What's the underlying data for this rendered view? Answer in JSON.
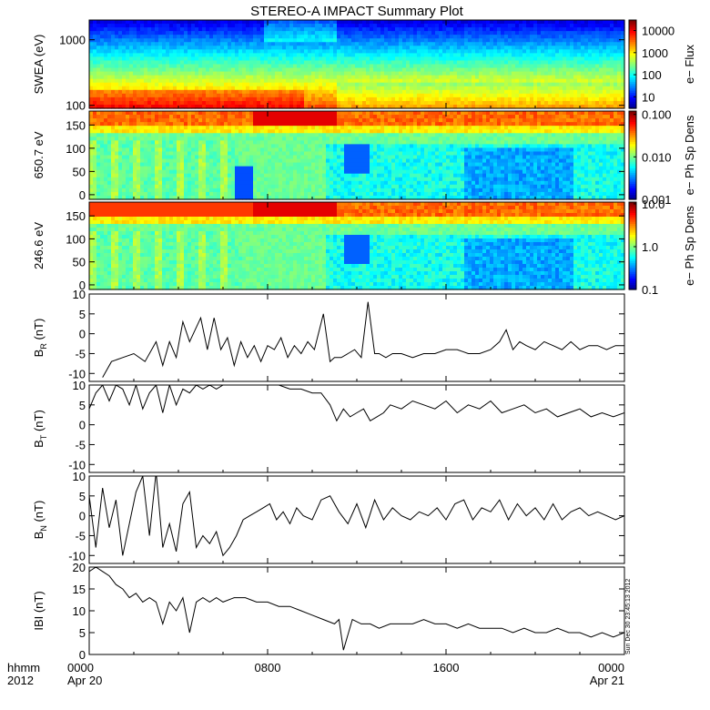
{
  "chart_data": {
    "type": "line",
    "title": "STEREO-A IMPACT Summary Plot",
    "stamp": "Sun Dec 30 23:45:13 2012",
    "time_axis": {
      "units_label": "hhmm",
      "year_label": "2012",
      "range_hours": [
        0,
        24
      ],
      "ticks": [
        {
          "hour": 0,
          "label": "0000",
          "date": "Apr 20"
        },
        {
          "hour": 8,
          "label": "0800",
          "date": ""
        },
        {
          "hour": 16,
          "label": "1600",
          "date": ""
        },
        {
          "hour": 24,
          "label": "0000",
          "date": "Apr 21"
        }
      ]
    },
    "spectrograms": [
      {
        "id": "swea",
        "ylabel": "SWEA (eV)",
        "yscale": "log",
        "ylim": [
          90,
          2000
        ],
        "yticks": [
          {
            "v": 100,
            "label": "100"
          },
          {
            "v": 1000,
            "label": "1000"
          }
        ],
        "colorbar_label": "e− Flux",
        "colorbar_scale": "log",
        "colorbar_ticks": [
          {
            "v": 10,
            "label": "10"
          },
          {
            "v": 100,
            "label": "100"
          },
          {
            "v": 1000,
            "label": "1000"
          },
          {
            "v": 10000,
            "label": "10000"
          }
        ],
        "colorbar_range": [
          3,
          30000
        ]
      },
      {
        "id": "pad650",
        "ylabel": "650.7 eV",
        "yscale": "linear",
        "ylim": [
          -10,
          180
        ],
        "yticks": [
          {
            "v": 0,
            "label": "0"
          },
          {
            "v": 50,
            "label": "50"
          },
          {
            "v": 100,
            "label": "100"
          },
          {
            "v": 150,
            "label": "150"
          }
        ],
        "colorbar_label": "e− Ph Sp Dens",
        "colorbar_scale": "log",
        "colorbar_ticks": [
          {
            "v": 0.001,
            "label": "0.001"
          },
          {
            "v": 0.01,
            "label": "0.010"
          },
          {
            "v": 0.1,
            "label": "0.100"
          }
        ],
        "colorbar_range": [
          0.001,
          0.12
        ]
      },
      {
        "id": "pad246",
        "ylabel": "246.6 eV",
        "yscale": "linear",
        "ylim": [
          -10,
          180
        ],
        "yticks": [
          {
            "v": 0,
            "label": "0"
          },
          {
            "v": 50,
            "label": "50"
          },
          {
            "v": 100,
            "label": "100"
          },
          {
            "v": 150,
            "label": "150"
          }
        ],
        "colorbar_label": "e− Ph Sp Dens",
        "colorbar_scale": "log",
        "colorbar_ticks": [
          {
            "v": 0.1,
            "label": "0.1"
          },
          {
            "v": 1,
            "label": "1.0"
          },
          {
            "v": 10,
            "label": "10.0"
          }
        ],
        "colorbar_range": [
          0.1,
          11
        ]
      }
    ],
    "series": [
      {
        "id": "BR",
        "ylabel_main": "B",
        "ylabel_sub": "R",
        "ylabel_unit": " (nT)",
        "ylim": [
          -12,
          10
        ],
        "yticks": [
          {
            "v": -10,
            "label": "-10"
          },
          {
            "v": -5,
            "label": "-5"
          },
          {
            "v": 0,
            "label": "0"
          },
          {
            "v": 5,
            "label": "5"
          },
          {
            "v": 10,
            "label": "10"
          }
        ],
        "x": [
          0.6,
          1.0,
          1.5,
          2.0,
          2.5,
          3.0,
          3.3,
          3.6,
          3.9,
          4.2,
          4.5,
          5.0,
          5.3,
          5.6,
          5.9,
          6.2,
          6.5,
          6.8,
          7.1,
          7.4,
          7.7,
          8.0,
          8.3,
          8.6,
          8.9,
          9.2,
          9.5,
          9.8,
          10.1,
          10.5,
          10.8,
          11.0,
          11.3,
          11.6,
          11.9,
          12.2,
          12.5,
          12.8,
          13.0,
          13.3,
          13.6,
          14.0,
          14.5,
          15.0,
          15.5,
          16.0,
          16.5,
          17.0,
          17.5,
          18.0,
          18.4,
          18.7,
          19.0,
          19.3,
          19.6,
          20.0,
          20.4,
          20.8,
          21.2,
          21.6,
          22.0,
          22.4,
          22.8,
          23.2,
          23.6,
          24.0
        ],
        "values": [
          -11,
          -7,
          -6,
          -5,
          -7,
          -2,
          -8,
          -2,
          -6,
          3,
          -2,
          4,
          -4,
          4,
          -4,
          -1,
          -8,
          -2,
          -6,
          -3,
          -7,
          -3,
          -4,
          -1,
          -6,
          -3,
          -5,
          -2,
          -4,
          5,
          -7,
          -6,
          -6,
          -5,
          -4,
          -6,
          8,
          -5,
          -5,
          -6,
          -5,
          -5,
          -6,
          -5,
          -5,
          -4,
          -4,
          -5,
          -5,
          -4,
          -2,
          1,
          -4,
          -2,
          -3,
          -4,
          -2,
          -3,
          -4,
          -2,
          -4,
          -3,
          -3,
          -4,
          -3,
          -3
        ]
      },
      {
        "id": "BT",
        "ylabel_main": "B",
        "ylabel_sub": "T",
        "ylabel_unit": " (nT)",
        "ylim": [
          -12,
          10
        ],
        "yticks": [
          {
            "v": -10,
            "label": "-10"
          },
          {
            "v": -5,
            "label": "-5"
          },
          {
            "v": 0,
            "label": "0"
          },
          {
            "v": 5,
            "label": "5"
          },
          {
            "v": 10,
            "label": "10"
          }
        ],
        "x": [
          0.0,
          0.3,
          0.6,
          0.9,
          1.2,
          1.5,
          1.8,
          2.1,
          2.4,
          2.7,
          3.0,
          3.3,
          3.6,
          3.9,
          4.2,
          4.5,
          4.8,
          5.1,
          5.4,
          5.7,
          6.0,
          6.5,
          7.0,
          7.5,
          8.0,
          8.5,
          9.0,
          9.5,
          10.0,
          10.4,
          10.8,
          11.1,
          11.4,
          11.7,
          12.0,
          12.3,
          12.6,
          12.9,
          13.2,
          13.5,
          14.0,
          14.5,
          15.0,
          15.5,
          16.0,
          16.5,
          17.0,
          17.5,
          18.0,
          18.5,
          19.0,
          19.5,
          20.0,
          20.5,
          21.0,
          21.5,
          22.0,
          22.5,
          23.0,
          23.5,
          24.0
        ],
        "values": [
          4,
          8,
          10,
          6,
          10,
          9,
          5,
          10,
          4,
          8,
          10,
          3,
          10,
          5,
          9,
          8,
          10,
          9,
          10,
          9,
          10,
          10,
          10,
          10,
          10,
          10,
          9,
          9,
          8,
          8,
          5,
          1,
          4,
          2,
          3,
          4,
          1,
          2,
          3,
          5,
          4,
          6,
          5,
          4,
          6,
          3,
          5,
          4,
          6,
          3,
          4,
          5,
          3,
          4,
          2,
          3,
          4,
          2,
          3,
          2,
          3
        ]
      },
      {
        "id": "BN",
        "ylabel_main": "B",
        "ylabel_sub": "N",
        "ylabel_unit": " (nT)",
        "ylim": [
          -12,
          10
        ],
        "yticks": [
          {
            "v": -10,
            "label": "-10"
          },
          {
            "v": -5,
            "label": "-5"
          },
          {
            "v": 0,
            "label": "0"
          },
          {
            "v": 5,
            "label": "5"
          },
          {
            "v": 10,
            "label": "10"
          }
        ],
        "x": [
          0.0,
          0.3,
          0.6,
          0.9,
          1.2,
          1.5,
          1.8,
          2.1,
          2.4,
          2.7,
          3.0,
          3.3,
          3.6,
          3.9,
          4.2,
          4.5,
          4.8,
          5.1,
          5.4,
          5.7,
          6.0,
          6.3,
          6.6,
          6.9,
          7.2,
          7.5,
          7.8,
          8.1,
          8.4,
          8.7,
          9.0,
          9.3,
          9.6,
          10.0,
          10.4,
          10.8,
          11.2,
          11.6,
          12.0,
          12.4,
          12.8,
          13.2,
          13.6,
          14.0,
          14.4,
          14.8,
          15.2,
          15.6,
          16.0,
          16.4,
          16.8,
          17.2,
          17.6,
          18.0,
          18.4,
          18.8,
          19.2,
          19.6,
          20.0,
          20.4,
          20.8,
          21.2,
          21.6,
          22.0,
          22.4,
          22.8,
          23.2,
          23.6,
          24.0
        ],
        "values": [
          5,
          -8,
          7,
          -3,
          4,
          -10,
          -2,
          6,
          10,
          -5,
          11,
          -8,
          -2,
          -9,
          3,
          6,
          -8,
          -5,
          -7,
          -4,
          -10,
          -8,
          -5,
          -1,
          0,
          1,
          2,
          3,
          -1,
          1,
          -2,
          2,
          0,
          -1,
          4,
          5,
          1,
          -2,
          3,
          -3,
          4,
          -1,
          2,
          0,
          -1,
          1,
          0,
          2,
          -1,
          3,
          4,
          -1,
          2,
          1,
          4,
          -1,
          3,
          0,
          2,
          -1,
          3,
          -1,
          1,
          2,
          0,
          1,
          0,
          -1,
          0
        ]
      },
      {
        "id": "Bmag",
        "ylabel_main": "IBI",
        "ylabel_sub": "",
        "ylabel_unit": " (nT)",
        "ylim": [
          0,
          20
        ],
        "yticks": [
          {
            "v": 0,
            "label": "0"
          },
          {
            "v": 5,
            "label": "5"
          },
          {
            "v": 10,
            "label": "10"
          },
          {
            "v": 15,
            "label": "15"
          },
          {
            "v": 20,
            "label": "20"
          }
        ],
        "x": [
          0.0,
          0.3,
          0.6,
          0.9,
          1.2,
          1.5,
          1.8,
          2.1,
          2.4,
          2.7,
          3.0,
          3.3,
          3.6,
          3.9,
          4.2,
          4.5,
          4.8,
          5.1,
          5.4,
          5.7,
          6.0,
          6.5,
          7.0,
          7.5,
          8.0,
          8.5,
          9.0,
          9.5,
          10.0,
          10.5,
          11.0,
          11.2,
          11.4,
          11.8,
          12.2,
          12.6,
          13.0,
          13.5,
          14.0,
          14.5,
          15.0,
          15.5,
          16.0,
          16.5,
          17.0,
          17.5,
          18.0,
          18.5,
          19.0,
          19.5,
          20.0,
          20.5,
          21.0,
          21.5,
          22.0,
          22.5,
          23.0,
          23.5,
          24.0
        ],
        "values": [
          19,
          20,
          19,
          18,
          16,
          15,
          13,
          14,
          12,
          13,
          12,
          7,
          12,
          10,
          13,
          5,
          12,
          13,
          12,
          13,
          12,
          13,
          13,
          12,
          12,
          11,
          11,
          10,
          9,
          8,
          7,
          8,
          1,
          8,
          7,
          7,
          6,
          7,
          7,
          7,
          8,
          7,
          7,
          6,
          7,
          6,
          6,
          6,
          5,
          6,
          5,
          5,
          6,
          5,
          5,
          4,
          5,
          4,
          5
        ]
      }
    ]
  }
}
